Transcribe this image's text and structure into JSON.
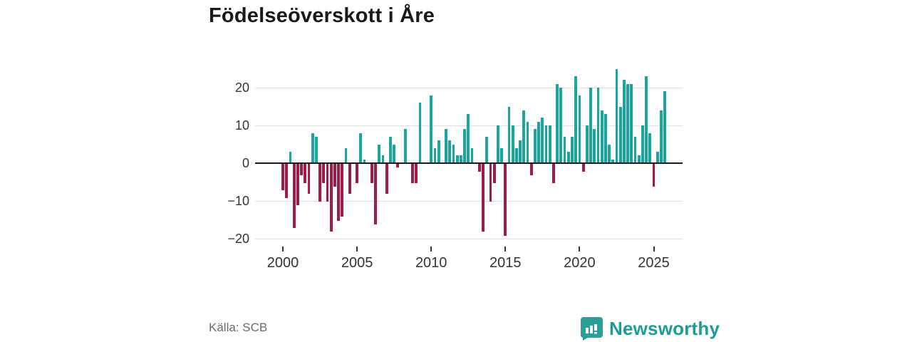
{
  "title": "Födelseöverskott i Åre",
  "source": "Källa: SCB",
  "logo": {
    "text": "Newsworthy",
    "mark": "bar-chart-speech-bubble"
  },
  "colors": {
    "positive_bar": "#18a59e",
    "negative_bar": "#9e1b4a",
    "gridline": "#e0e0e0",
    "zero_line": "#1a1a1a",
    "axis_text": "#333333",
    "source_text": "#6b6b6b",
    "logo_teal": "#2b9f97"
  },
  "chart_data": {
    "type": "bar",
    "title": "Födelseöverskott i Åre",
    "cadence": "quarterly",
    "start_year": 2000,
    "xlabel": "",
    "ylabel": "",
    "ylim": [
      -22,
      27
    ],
    "grid": true,
    "legend": false,
    "y_ticks": [
      20,
      10,
      0,
      -10,
      -20
    ],
    "x_ticks": [
      2000,
      2005,
      2010,
      2015,
      2020,
      2025
    ],
    "series": [
      {
        "name": "Födelseöverskott",
        "values": [
          -7,
          -9,
          3,
          -17,
          -11,
          -3,
          -5,
          -8,
          8,
          7,
          -10,
          -5,
          -10,
          -18,
          -6,
          -15,
          -14,
          4,
          -8,
          0,
          -5,
          8,
          1,
          0,
          -5,
          -16,
          5,
          2,
          -8,
          7,
          5,
          -1,
          0,
          9,
          0,
          -5,
          -5,
          16,
          0,
          0,
          18,
          4,
          6,
          0,
          9,
          6,
          5,
          2,
          2,
          9,
          13,
          4,
          0,
          -2,
          -18,
          7,
          -10,
          -5,
          10,
          4,
          -19,
          15,
          10,
          4,
          6,
          14,
          11,
          -3,
          9,
          11,
          12,
          10,
          10,
          -5,
          21,
          20,
          7,
          3,
          7,
          23,
          18,
          -2,
          10,
          20,
          9,
          20,
          14,
          13,
          5,
          1,
          25,
          15,
          22,
          21,
          21,
          7,
          2,
          10,
          23,
          8,
          -6,
          3,
          14,
          19
        ]
      }
    ]
  }
}
